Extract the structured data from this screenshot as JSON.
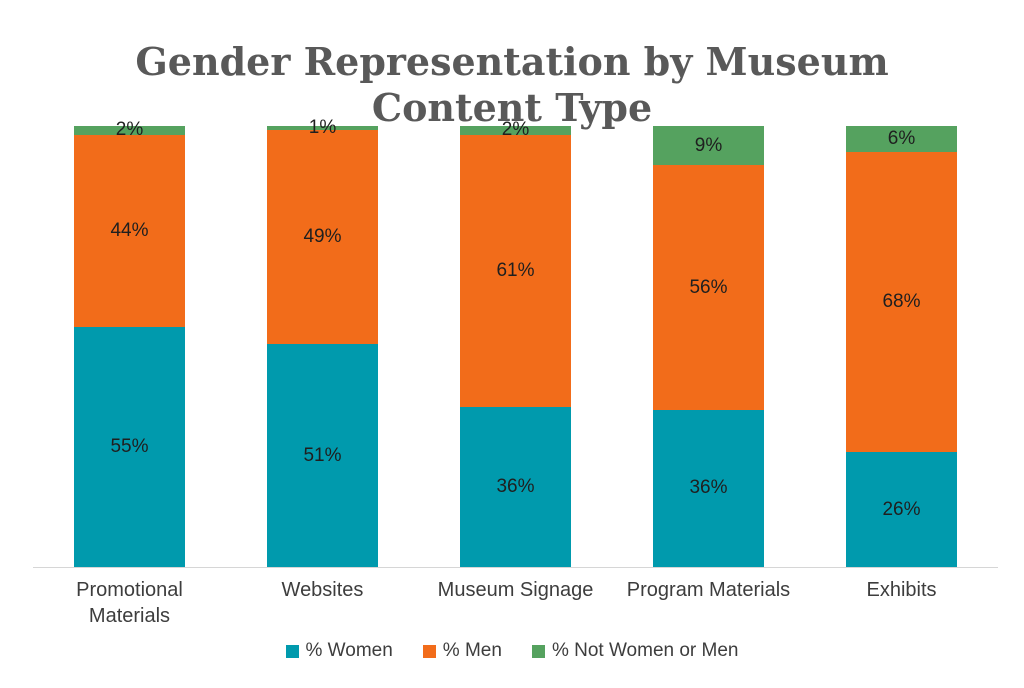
{
  "title": {
    "text": "Gender Representation by Museum Content Type",
    "lines": [
      "Gender Representation by Museum",
      "Content Type"
    ],
    "color": "#595959"
  },
  "chart_data": {
    "type": "bar",
    "stacked": true,
    "orientation": "vertical",
    "title": "Gender Representation by Museum Content Type",
    "categories": [
      "Promotional Materials",
      "Websites",
      "Museum Signage",
      "Program Materials",
      "Exhibits"
    ],
    "series": [
      {
        "name": "% Women",
        "color": "#009AAD",
        "values": [
          55,
          51,
          36,
          36,
          26
        ]
      },
      {
        "name": "% Men",
        "color": "#F26C1A",
        "values": [
          44,
          49,
          61,
          56,
          68
        ]
      },
      {
        "name": "% Not Women or Men",
        "color": "#55A25F",
        "values": [
          2,
          1,
          2,
          9,
          6
        ]
      }
    ],
    "data_labels": [
      [
        "55%",
        "51%",
        "36%",
        "36%",
        "26%"
      ],
      [
        "44%",
        "49%",
        "61%",
        "56%",
        "68%"
      ],
      [
        "2%",
        "1%",
        "2%",
        "9%",
        "6%"
      ]
    ],
    "value_suffix": "%",
    "ylim": [
      0,
      100
    ],
    "grid": false,
    "y_axis_visible": false,
    "legend_position": "bottom",
    "axis_line_color": "#d6d6d6",
    "label_color": "#1f1f1f",
    "category_label_color": "#3d3d3d"
  }
}
